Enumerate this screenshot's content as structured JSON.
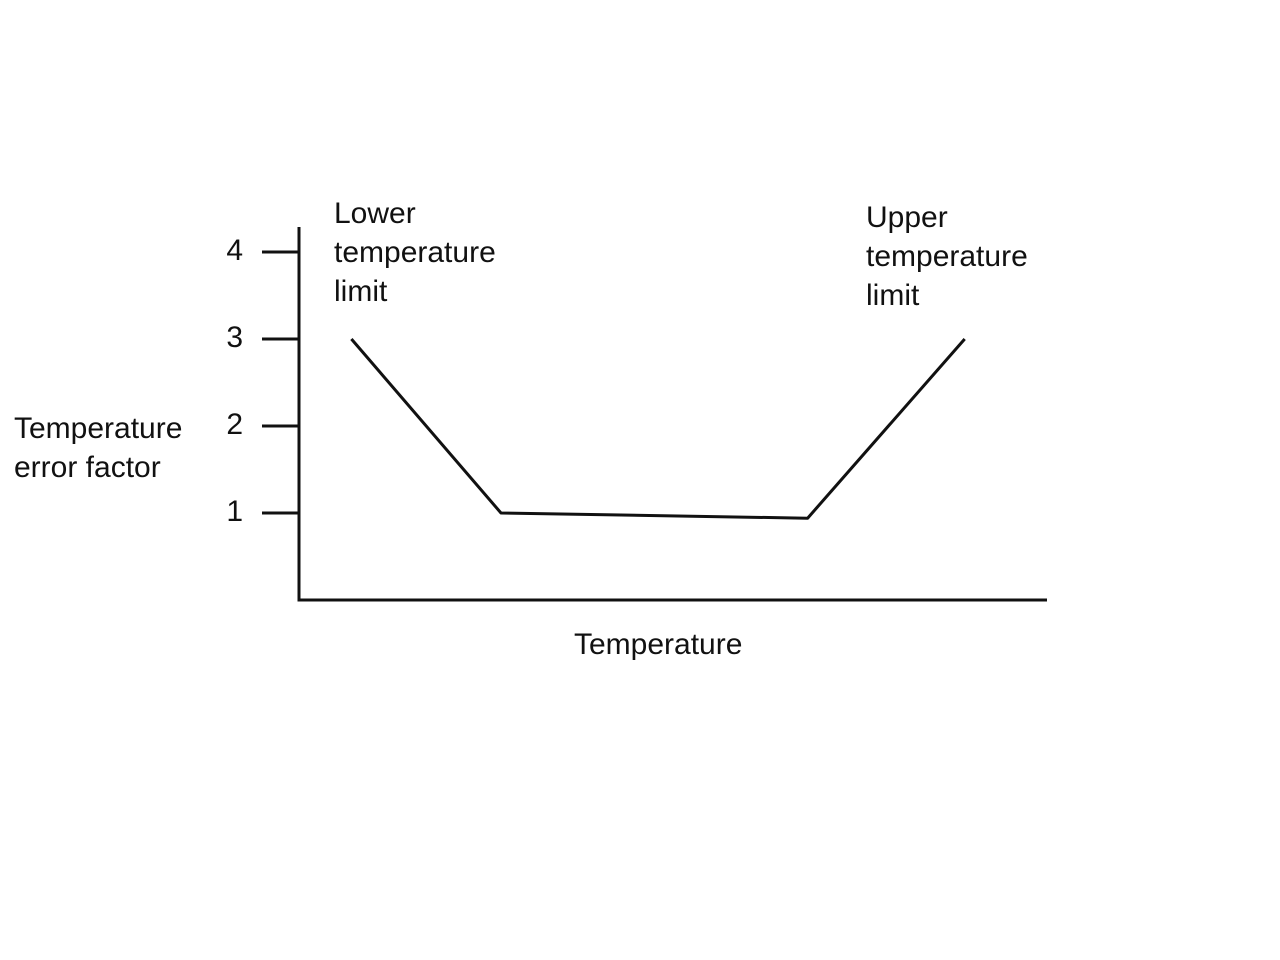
{
  "chart_data": {
    "type": "line",
    "title": "",
    "xlabel": "Temperature",
    "ylabel": "Temperature error factor",
    "ylabel_lines": [
      "Temperature",
      "error factor"
    ],
    "ylim": [
      0,
      4.5
    ],
    "yticks": [
      1,
      2,
      3,
      4
    ],
    "ytick_labels": [
      "1",
      "2",
      "3",
      "4"
    ],
    "xticks": [],
    "grid": false,
    "line_color": "#111111",
    "series": [
      {
        "x": [
          0.07,
          0.27,
          0.68,
          0.89
        ],
        "values": [
          3.0,
          1.0,
          0.94,
          3.0
        ]
      }
    ],
    "annotations": [
      {
        "text_lines": [
          "Lower",
          "temperature",
          "limit"
        ]
      },
      {
        "text_lines": [
          "Upper",
          "temperature",
          "limit"
        ]
      }
    ]
  }
}
